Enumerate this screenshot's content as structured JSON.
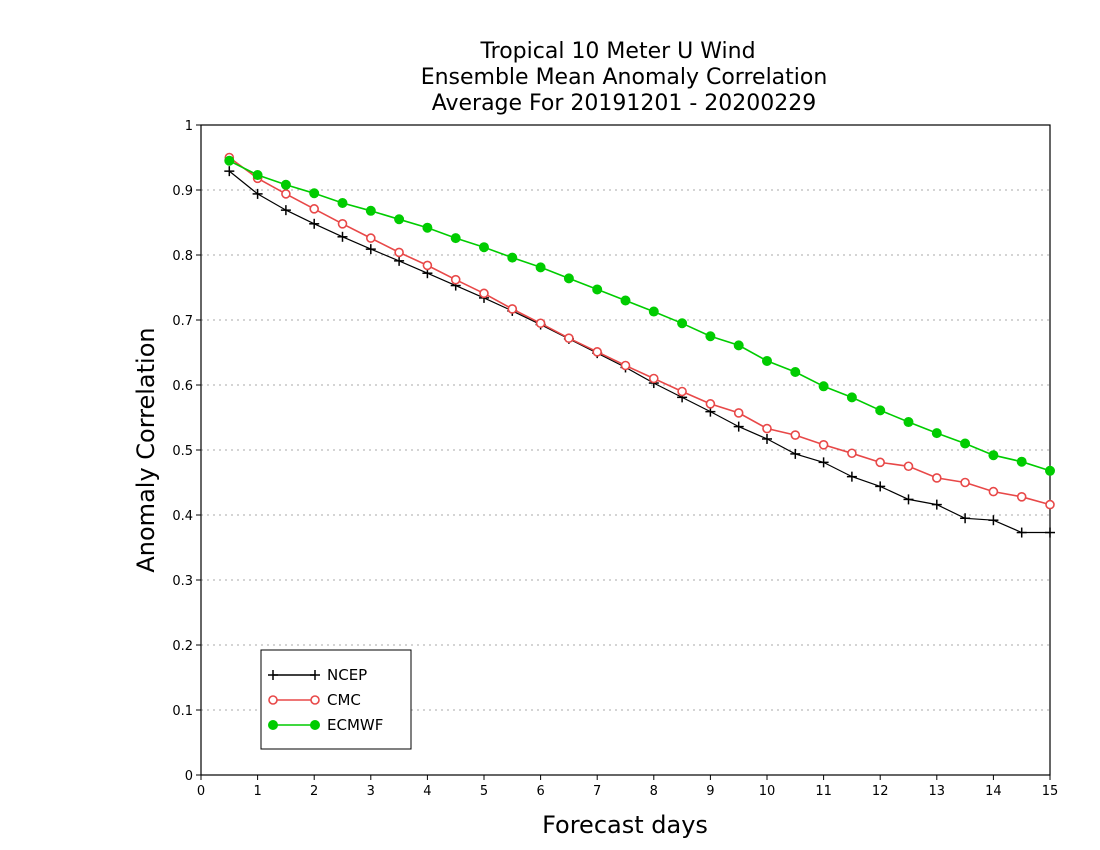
{
  "chart_data": {
    "type": "line",
    "title_lines": [
      "Tropical 10 Meter U Wind",
      "Ensemble Mean Anomaly Correlation",
      "Average For 20191201 - 20200229"
    ],
    "xlabel": "Forecast days",
    "ylabel": "Anomaly Correlation",
    "xlim": [
      0,
      15
    ],
    "ylim": [
      0,
      1
    ],
    "xticks": [
      "0",
      "1",
      "2",
      "3",
      "4",
      "5",
      "6",
      "7",
      "8",
      "9",
      "10",
      "11",
      "12",
      "13",
      "14",
      "15"
    ],
    "yticks": [
      "0",
      "0.1",
      "0.2",
      "0.3",
      "0.4",
      "0.5",
      "0.6",
      "0.7",
      "0.8",
      "0.9",
      "1"
    ],
    "grid": "horizontal dotted",
    "legend_position": "bottom-left",
    "x": [
      0.5,
      1,
      1.5,
      2,
      2.5,
      3,
      3.5,
      4,
      4.5,
      5,
      5.5,
      6,
      6.5,
      7,
      7.5,
      8,
      8.5,
      9,
      9.5,
      10,
      10.5,
      11,
      11.5,
      12,
      12.5,
      13,
      13.5,
      14,
      14.5,
      15
    ],
    "series": [
      {
        "name": "NCEP",
        "color": "#000000",
        "marker": "plus",
        "values": [
          0.929,
          0.894,
          0.869,
          0.848,
          0.828,
          0.809,
          0.791,
          0.772,
          0.753,
          0.734,
          0.714,
          0.693,
          0.671,
          0.649,
          0.627,
          0.603,
          0.581,
          0.559,
          0.536,
          0.517,
          0.494,
          0.481,
          0.459,
          0.444,
          0.424,
          0.416,
          0.395,
          0.392,
          0.373,
          0.373
        ]
      },
      {
        "name": "CMC",
        "color": "#e84848",
        "marker": "open-circle",
        "values": [
          0.95,
          0.918,
          0.894,
          0.871,
          0.848,
          0.826,
          0.804,
          0.784,
          0.762,
          0.741,
          0.717,
          0.695,
          0.672,
          0.651,
          0.63,
          0.61,
          0.59,
          0.571,
          0.557,
          0.533,
          0.523,
          0.508,
          0.495,
          0.481,
          0.475,
          0.457,
          0.45,
          0.436,
          0.428,
          0.416
        ]
      },
      {
        "name": "ECMWF",
        "color": "#00cc00",
        "marker": "filled-circle",
        "values": [
          0.945,
          0.923,
          0.908,
          0.895,
          0.88,
          0.868,
          0.855,
          0.842,
          0.826,
          0.812,
          0.796,
          0.781,
          0.764,
          0.747,
          0.73,
          0.713,
          0.695,
          0.675,
          0.661,
          0.637,
          0.62,
          0.598,
          0.581,
          0.561,
          0.543,
          0.526,
          0.51,
          0.492,
          0.482,
          0.468
        ]
      }
    ]
  }
}
